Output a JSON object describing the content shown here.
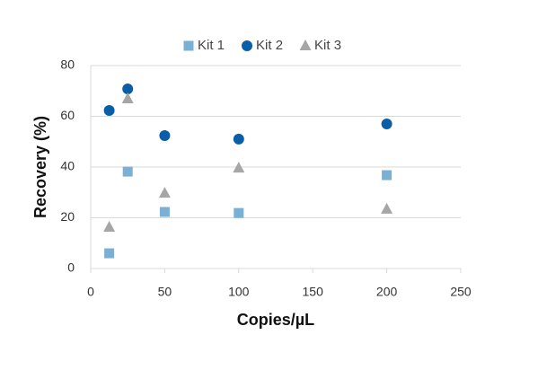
{
  "chart_data": {
    "type": "scatter",
    "x_label": "Copies/µL",
    "y_label": "Recovery (%)",
    "x": [
      12.5,
      25,
      50,
      100,
      200
    ],
    "series": [
      {
        "name": "Kit 1",
        "color": "#7bafd4",
        "marker": "square",
        "values": [
          6.0,
          38.2,
          22.3,
          21.9,
          36.8
        ]
      },
      {
        "name": "Kit 2",
        "color": "#0a5ea8",
        "marker": "circle",
        "values": [
          62.3,
          70.8,
          52.4,
          51.0,
          57.0
        ]
      },
      {
        "name": "Kit 3",
        "color": "#a6a6a6",
        "marker": "triangle",
        "values": [
          16.3,
          66.9,
          29.7,
          39.6,
          23.4
        ]
      }
    ],
    "xlim": [
      0,
      250
    ],
    "xticks": [
      0,
      50,
      100,
      150,
      200,
      250
    ],
    "ylim": [
      0,
      80
    ],
    "yticks": [
      0,
      20,
      40,
      60,
      80
    ],
    "grid": true,
    "legend": "top"
  }
}
